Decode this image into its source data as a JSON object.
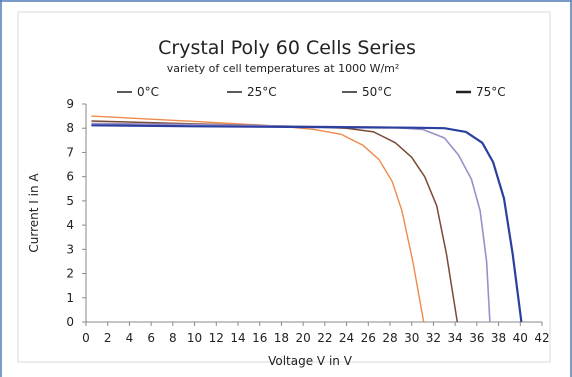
{
  "chart_data": {
    "type": "line",
    "title": "Crystal Poly 60 Cells Series",
    "subtitle": "variety of cell temperatures at 1000 W/m²",
    "xlabel": "Voltage V in V",
    "ylabel": "Current I in A",
    "xlim": [
      0,
      42
    ],
    "ylim": [
      0,
      9
    ],
    "x_ticks": [
      0,
      2,
      4,
      6,
      8,
      10,
      12,
      14,
      16,
      18,
      20,
      22,
      24,
      26,
      28,
      30,
      32,
      34,
      36,
      38,
      40,
      42
    ],
    "y_ticks": [
      0,
      1,
      2,
      3,
      4,
      5,
      6,
      7,
      8,
      9
    ],
    "grid": false,
    "legend_position": "top",
    "series": [
      {
        "name": "0°C",
        "color": "#2b3f9f",
        "points": [
          [
            0.5,
            8.12
          ],
          [
            10,
            8.08
          ],
          [
            20,
            8.05
          ],
          [
            30,
            8.02
          ],
          [
            33,
            8.0
          ],
          [
            35,
            7.85
          ],
          [
            36.5,
            7.4
          ],
          [
            37.5,
            6.6
          ],
          [
            38.5,
            5.1
          ],
          [
            39.3,
            2.8
          ],
          [
            40.1,
            0.0
          ]
        ]
      },
      {
        "name": "25°C",
        "color": "#9a90c8",
        "points": [
          [
            0.5,
            8.2
          ],
          [
            10,
            8.15
          ],
          [
            20,
            8.08
          ],
          [
            28,
            8.04
          ],
          [
            31,
            7.95
          ],
          [
            33,
            7.6
          ],
          [
            34.3,
            6.9
          ],
          [
            35.5,
            5.9
          ],
          [
            36.3,
            4.6
          ],
          [
            36.9,
            2.5
          ],
          [
            37.2,
            0.0
          ]
        ]
      },
      {
        "name": "50°C",
        "color": "#7a4a35",
        "points": [
          [
            0.5,
            8.3
          ],
          [
            10,
            8.18
          ],
          [
            20,
            8.07
          ],
          [
            24,
            8.0
          ],
          [
            26.5,
            7.85
          ],
          [
            28.5,
            7.4
          ],
          [
            30,
            6.8
          ],
          [
            31.2,
            6.0
          ],
          [
            32.3,
            4.8
          ],
          [
            33.2,
            2.8
          ],
          [
            34.2,
            0.0
          ]
        ]
      },
      {
        "name": "75°C",
        "color": "#ef8a4d",
        "points": [
          [
            0.5,
            8.5
          ],
          [
            10,
            8.28
          ],
          [
            18,
            8.08
          ],
          [
            21,
            7.95
          ],
          [
            23.5,
            7.75
          ],
          [
            25.5,
            7.3
          ],
          [
            27,
            6.7
          ],
          [
            28.2,
            5.8
          ],
          [
            29.1,
            4.6
          ],
          [
            30.1,
            2.5
          ],
          [
            31.1,
            0.0
          ]
        ]
      }
    ]
  }
}
